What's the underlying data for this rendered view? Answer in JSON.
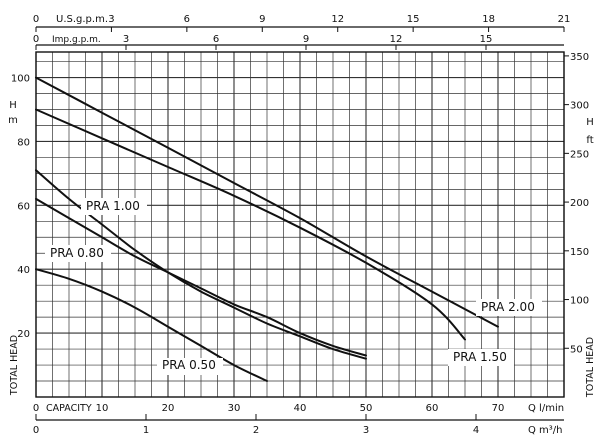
{
  "chart_data": {
    "type": "line",
    "series": [
      {
        "name": "PRA 0.50",
        "x": [
          0,
          5,
          10,
          15,
          20,
          25,
          30,
          35
        ],
        "y": [
          40,
          37,
          33,
          28,
          22,
          16,
          10,
          5
        ]
      },
      {
        "name": "PRA 0.80",
        "x": [
          0,
          5,
          10,
          15,
          20,
          25,
          30,
          35,
          40,
          45,
          50
        ],
        "y": [
          62,
          56,
          50,
          44,
          39,
          34,
          29,
          25,
          20,
          16,
          13
        ]
      },
      {
        "name": "PRA 1.00",
        "x": [
          0,
          5,
          10,
          15,
          20,
          25,
          30,
          35,
          40,
          45,
          50
        ],
        "y": [
          71,
          62,
          54,
          46,
          39,
          33,
          28,
          23,
          19,
          15,
          12
        ]
      },
      {
        "name": "PRA 1.50",
        "x": [
          0,
          10,
          20,
          30,
          40,
          50,
          60,
          65
        ],
        "y": [
          90,
          81,
          72,
          63,
          53,
          42,
          29,
          18
        ]
      },
      {
        "name": "PRA 2.00",
        "x": [
          0,
          10,
          20,
          30,
          40,
          50,
          60,
          70
        ],
        "y": [
          100,
          89,
          78,
          67,
          56,
          44,
          33,
          22
        ]
      }
    ],
    "x_lpm": {
      "label": "Q l/min",
      "ticks": [
        "0",
        "10",
        "20",
        "30",
        "40",
        "50",
        "60",
        "70"
      ],
      "prefix": "CAPACITY",
      "range": [
        0,
        80
      ]
    },
    "x_m3h": {
      "label": "Q m³/h",
      "ticks": [
        "0",
        "1",
        "2",
        "3",
        "4"
      ],
      "range": [
        0,
        4.8
      ]
    },
    "x_usgpm": {
      "label": "U.S.g.p.m.",
      "ticks": [
        "0",
        "3",
        "6",
        "9",
        "12",
        "15",
        "18",
        "21"
      ],
      "range": [
        0,
        21
      ]
    },
    "x_impgpm": {
      "label": "Imp.g.p.m.",
      "ticks": [
        "0",
        "3",
        "6",
        "9",
        "12",
        "15"
      ],
      "range": [
        0,
        17.6
      ]
    },
    "y_m": {
      "label": "H",
      "unit": "m",
      "ticks": [
        "20",
        "40",
        "60",
        "80",
        "100"
      ],
      "range": [
        0,
        108
      ],
      "side_label": "TOTAL HEAD"
    },
    "y_ft": {
      "label": "H",
      "unit": "ft",
      "ticks": [
        "50",
        "100",
        "150",
        "200",
        "250",
        "300",
        "350"
      ],
      "range": [
        0,
        354
      ],
      "side_label": "TOTAL HEAD"
    },
    "grid": true,
    "colors": {
      "line": "#111111",
      "grid": "#333333",
      "background": "#ffffff"
    }
  }
}
